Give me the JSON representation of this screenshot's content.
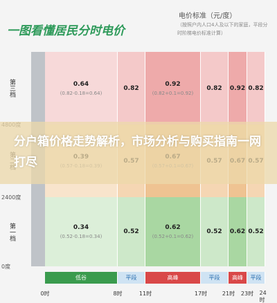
{
  "header": {
    "title": "一图看懂居民分时电价",
    "unit": "电价标准（元/度）",
    "note": "（按照户内人口4人及以下的家庭，平段分时阶梯电价标准计算）"
  },
  "tiers": [
    {
      "label": "第三档",
      "cells": [
        {
          "value": "0.64",
          "formula": "(0.82-0.18=0.64)"
        },
        {
          "value": "0.82"
        },
        {
          "value": "0.92",
          "formula": "(0.82+0.1=0.92)"
        },
        {
          "value": "0.82"
        },
        {
          "value": "0.92"
        },
        {
          "value": "0.82"
        }
      ]
    },
    {
      "label": "第二档",
      "cells": [
        {
          "value": "0.39",
          "formula": "(0.57-0.18=0.39)"
        },
        {
          "value": "0.57"
        },
        {
          "value": "0.67",
          "formula": "(0.57+0.1=0.67)"
        },
        {
          "value": "0.57"
        },
        {
          "value": "0.67"
        },
        {
          "value": "0.57"
        }
      ]
    },
    {
      "label": "第一档",
      "cells": [
        {
          "value": "0.34",
          "formula": "(0.52-0.18=0.34)"
        },
        {
          "value": "0.52"
        },
        {
          "value": "0.62",
          "formula": "(0.52+0.1=0.62)"
        },
        {
          "value": "0.52"
        },
        {
          "value": "0.62"
        },
        {
          "value": "0.52"
        }
      ]
    }
  ],
  "bounds": [
    "4800度",
    "2400度",
    "0度"
  ],
  "periods": [
    "低谷",
    "平段",
    "高峰",
    "平段",
    "高峰",
    "平段"
  ],
  "times": [
    "0时",
    "8时",
    "11时",
    "17时",
    "21时",
    "23时",
    "24时"
  ],
  "banner": "分户箱价格走势解析，市场分析与购买指南一网打尽"
}
